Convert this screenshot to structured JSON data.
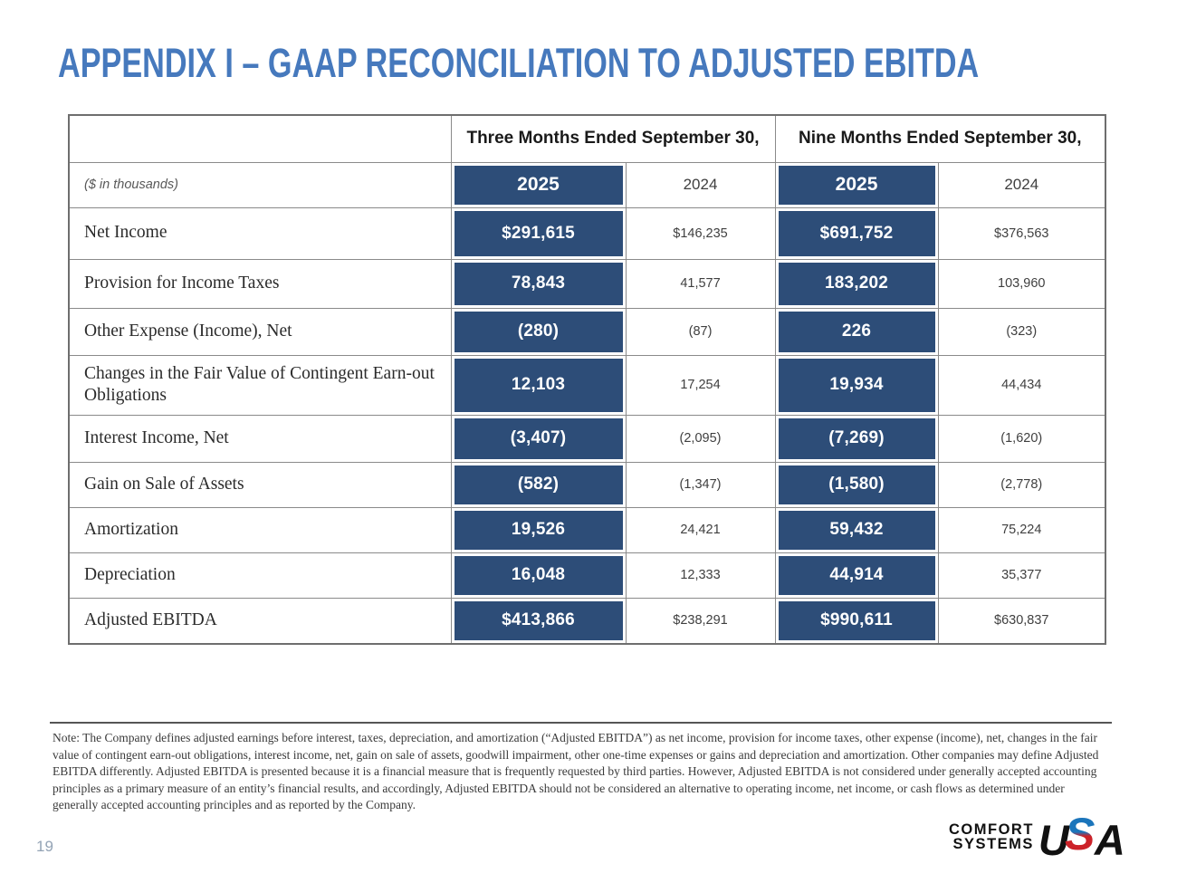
{
  "page": {
    "title": "APPENDIX I – GAAP RECONCILIATION TO ADJUSTED EBITDA",
    "page_number": "19"
  },
  "table": {
    "unit_label": "($ in thousands)",
    "group_headers": [
      "Three Months Ended September 30,",
      "Nine Months Ended September 30,"
    ],
    "year_columns": [
      "2025",
      "2024",
      "2025",
      "2024"
    ],
    "rows": [
      {
        "label": "Net Income",
        "values": [
          "$291,615",
          "$146,235",
          "$691,752",
          "$376,563"
        ]
      },
      {
        "label": "Provision for Income Taxes",
        "values": [
          "78,843",
          "41,577",
          "183,202",
          "103,960"
        ]
      },
      {
        "label": "Other Expense (Income), Net",
        "values": [
          "(280)",
          "(87)",
          "226",
          "(323)"
        ]
      },
      {
        "label": "Changes in the Fair Value of Contingent Earn-out Obligations",
        "values": [
          "12,103",
          "17,254",
          "19,934",
          "44,434"
        ]
      },
      {
        "label": "Interest Income, Net",
        "values": [
          "(3,407)",
          "(2,095)",
          "(7,269)",
          "(1,620)"
        ]
      },
      {
        "label": "Gain on Sale of Assets",
        "values": [
          "(582)",
          "(1,347)",
          "(1,580)",
          "(2,778)"
        ]
      },
      {
        "label": "Amortization",
        "values": [
          "19,526",
          "24,421",
          "59,432",
          "75,224"
        ]
      },
      {
        "label": "Depreciation",
        "values": [
          "16,048",
          "12,333",
          "44,914",
          "35,377"
        ]
      },
      {
        "label": "Adjusted EBITDA",
        "values": [
          "$413,866",
          "$238,291",
          "$990,611",
          "$630,837"
        ]
      }
    ]
  },
  "note": "Note:  The Company defines adjusted earnings before interest, taxes, depreciation, and amortization (“Adjusted EBITDA”) as net income, provision for income taxes, other expense (income), net, changes in the fair value of contingent earn-out obligations, interest income, net, gain on sale of assets, goodwill impairment, other one-time expenses or gains and depreciation and amortization.  Other companies may define Adjusted EBITDA differently.  Adjusted EBITDA is presented because it is a financial measure that is frequently requested by third parties.  However, Adjusted EBITDA is not considered under generally accepted accounting principles as a primary measure of an entity’s financial results, and accordingly, Adjusted EBITDA should not be considered an alternative to operating income, net income, or cash flows as determined under generally accepted accounting principles and as reported by the Company.",
  "logo": {
    "line1": "COMFORT",
    "line2": "SYSTEMS",
    "usa_u": "U",
    "usa_s": "S",
    "usa_a": "A"
  },
  "colors": {
    "title_blue": "#4679BD",
    "navy": "#2D4D78",
    "logo_blue": "#1B75BB",
    "logo_red": "#CC2229"
  }
}
